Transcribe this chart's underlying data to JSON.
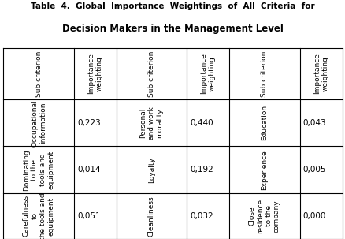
{
  "title_line1": "Table  4.  Global  Importance  Weightings  of  All  Criteria  for",
  "title_line2": "Decision Makers in the Management Level",
  "headers": [
    "Sub criterion",
    "Importance\nweighting",
    "Sub criterion",
    "Importance\nweighting",
    "Sub criterion",
    "Importance\nweighting"
  ],
  "rows": [
    [
      "Occupational\ninformation",
      "0,223",
      "Personal\nand work\nmorality",
      "0,440",
      "Education",
      "0,043"
    ],
    [
      "Dominating\nto the\ntools and\nequipment",
      "0,014",
      "Loyalty",
      "0,192",
      "Experience",
      "0,005"
    ],
    [
      "Carefulness\nto\nthe tools and\nequipment",
      "0,051",
      "Cleanliness",
      "0,032",
      "Close\nresidence\nto the\ncompany",
      "0,000"
    ]
  ],
  "bg_color": "#ffffff",
  "border_color": "#000000",
  "text_color": "#000000",
  "font_size_title1": 7.5,
  "font_size_title2": 8.5,
  "font_size_rotated": 6.5,
  "font_size_value": 7.5
}
